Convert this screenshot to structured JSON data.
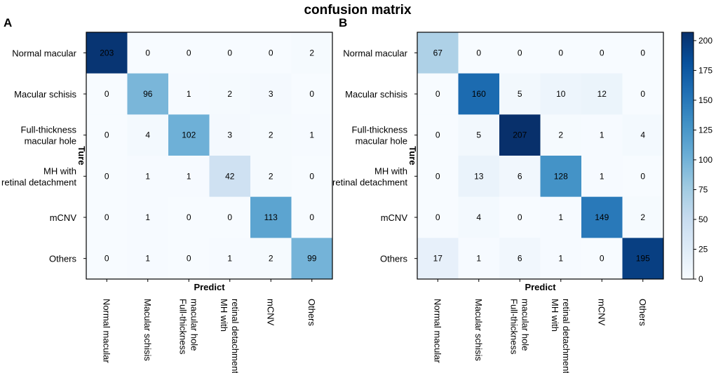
{
  "figure": {
    "title": "confusion matrix",
    "colorbar_ticks": [
      0,
      25,
      50,
      75,
      100,
      125,
      150,
      175,
      200
    ]
  },
  "colors": {
    "low": "#f7fbff",
    "high": "#08306b",
    "axis": "#000000"
  },
  "chart_data": [
    {
      "type": "heatmap",
      "panel_label": "A",
      "title": "",
      "xlabel": "Predict",
      "ylabel": "Ture",
      "row_labels": [
        [
          "Normal macular"
        ],
        [
          "Macular schisis"
        ],
        [
          "Full-thickness",
          "macular hole"
        ],
        [
          "MH with",
          "retinal detachment"
        ],
        [
          "mCNV"
        ],
        [
          "Others"
        ]
      ],
      "col_labels": [
        [
          "Normal macular"
        ],
        [
          "Macular schisis"
        ],
        [
          "Full-thickness",
          "macular hole"
        ],
        [
          "MH with",
          "retinal detachment"
        ],
        [
          "mCNV"
        ],
        [
          "Others"
        ]
      ],
      "values": [
        [
          203,
          0,
          0,
          0,
          0,
          2
        ],
        [
          0,
          96,
          1,
          2,
          3,
          0
        ],
        [
          0,
          4,
          102,
          3,
          2,
          1
        ],
        [
          0,
          1,
          1,
          42,
          2,
          0
        ],
        [
          0,
          1,
          0,
          0,
          113,
          0
        ],
        [
          0,
          1,
          0,
          1,
          2,
          99
        ]
      ],
      "vmin": 0,
      "vmax": 207
    },
    {
      "type": "heatmap",
      "panel_label": "B",
      "title": "",
      "xlabel": "Predict",
      "ylabel": "Ture",
      "row_labels": [
        [
          "Normal macular"
        ],
        [
          "Macular schisis"
        ],
        [
          "Full-thickness",
          "macular hole"
        ],
        [
          "MH with",
          "retinal detachment"
        ],
        [
          "mCNV"
        ],
        [
          "Others"
        ]
      ],
      "col_labels": [
        [
          "Normal macular"
        ],
        [
          "Macular schisis"
        ],
        [
          "Full-thickness",
          "macular hole"
        ],
        [
          "MH with",
          "retinal detachment"
        ],
        [
          "mCNV"
        ],
        [
          "Others"
        ]
      ],
      "values": [
        [
          67,
          0,
          0,
          0,
          0,
          0
        ],
        [
          0,
          160,
          5,
          10,
          12,
          0
        ],
        [
          0,
          5,
          207,
          2,
          1,
          4
        ],
        [
          0,
          13,
          6,
          128,
          1,
          0
        ],
        [
          0,
          4,
          0,
          1,
          149,
          2
        ],
        [
          17,
          1,
          6,
          1,
          0,
          195
        ]
      ],
      "vmin": 0,
      "vmax": 207
    }
  ]
}
